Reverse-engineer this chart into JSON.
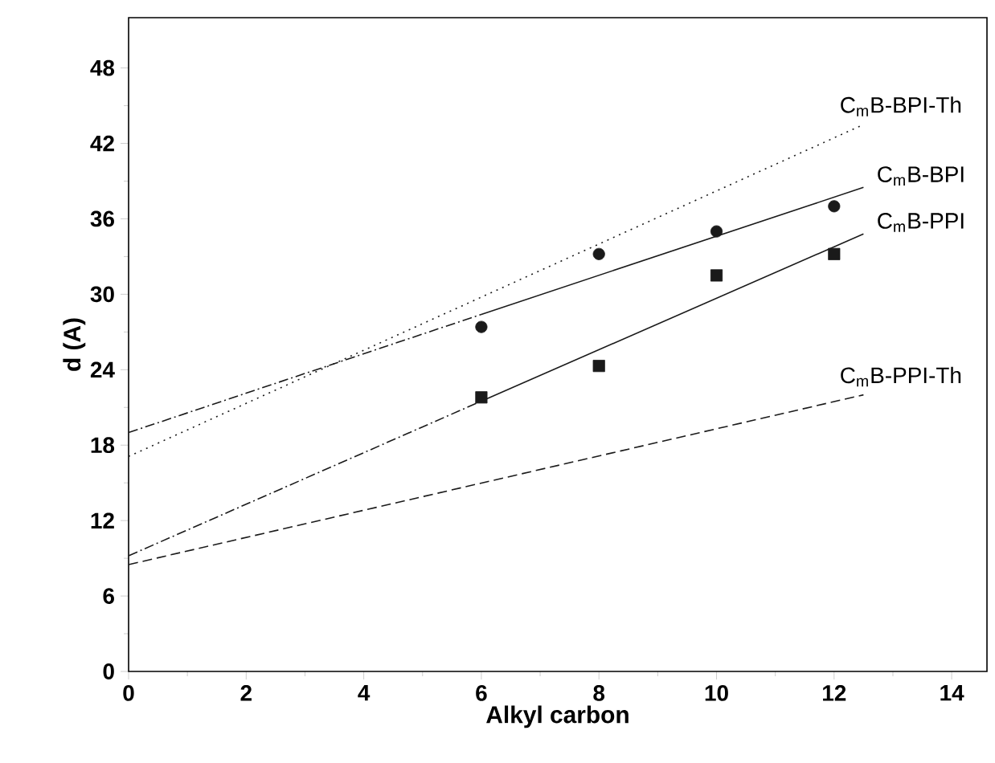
{
  "chart_data": {
    "type": "scatter",
    "xlabel": "Alkyl carbon",
    "ylabel": "d (A)",
    "xlim": [
      0,
      14.6
    ],
    "ylim": [
      0,
      52
    ],
    "xticks": [
      0,
      2,
      4,
      6,
      8,
      10,
      12,
      14
    ],
    "yticks": [
      0,
      6,
      12,
      18,
      24,
      30,
      36,
      42,
      48
    ],
    "grid": false,
    "series": [
      {
        "marker": "circle",
        "color": "#1a1a1a",
        "x": [
          6,
          8,
          10,
          12
        ],
        "values": [
          27.4,
          33.2,
          35,
          37
        ]
      },
      {
        "marker": "square",
        "color": "#1a1a1a",
        "x": [
          6,
          8,
          10,
          12
        ],
        "values": [
          21.8,
          24.3,
          31.5,
          33.2
        ]
      },
      {
        "type": "line",
        "line_style": "dashdot",
        "color": "#1a1a1a",
        "x": [
          0,
          6
        ],
        "values": [
          19,
          28.4
        ]
      },
      {
        "type": "line",
        "line_style": "solid",
        "color": "#1a1a1a",
        "name": "C$_{m}$B-BPI",
        "x": [
          6,
          12.5
        ],
        "values": [
          28.4,
          38.5
        ]
      },
      {
        "type": "line",
        "line_style": "dashdot",
        "color": "#1a1a1a",
        "x": [
          0,
          6
        ],
        "values": [
          9.2,
          21.5
        ]
      },
      {
        "type": "line",
        "line_style": "solid",
        "color": "#1a1a1a",
        "name": "C$_{m}$B-PPI",
        "x": [
          6,
          12.5
        ],
        "values": [
          21.5,
          34.8
        ]
      },
      {
        "type": "line",
        "line_style": "dotted",
        "color": "#1a1a1a",
        "name": "C$_{m}$B-BPI-Th",
        "x": [
          0,
          12.5
        ],
        "values": [
          17.1,
          43.5
        ]
      },
      {
        "type": "line",
        "line_style": "dashed",
        "color": "#1a1a1a",
        "name": "C$_{m}$B-PPI-Th",
        "x": [
          0,
          12.5
        ],
        "values": [
          8.5,
          22
        ]
      }
    ]
  }
}
